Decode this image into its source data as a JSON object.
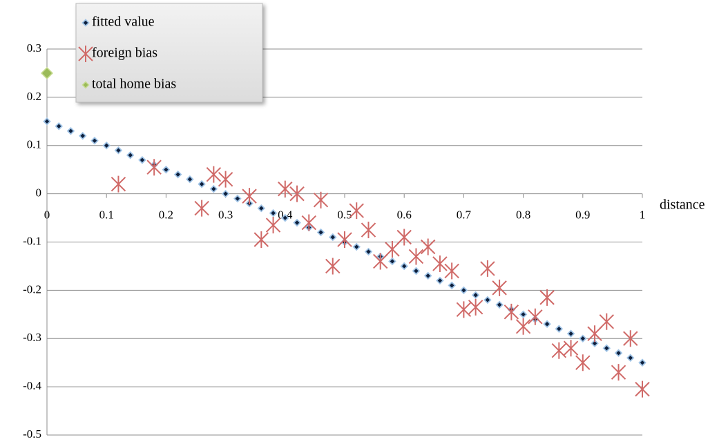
{
  "chart_data": {
    "type": "scatter",
    "x_label": "distance",
    "xlim": [
      0,
      1
    ],
    "xticks": [
      0,
      0.1,
      0.2,
      0.3,
      0.4,
      0.5,
      0.6,
      0.7,
      0.8,
      0.9,
      1
    ],
    "ylim": [
      -0.5,
      0.3
    ],
    "yticks": [
      0.3,
      0.2,
      0.1,
      0,
      -0.1,
      -0.2,
      -0.3,
      -0.4,
      -0.5
    ],
    "grid": true,
    "legend": "top-left",
    "series": [
      {
        "name": "fitted value",
        "color": "#0d1f3c",
        "marker": "diamond",
        "x": [
          0,
          0.02,
          0.04,
          0.06,
          0.08,
          0.1,
          0.12,
          0.14,
          0.16,
          0.18,
          0.2,
          0.22,
          0.24,
          0.26,
          0.28,
          0.3,
          0.32,
          0.34,
          0.36,
          0.38,
          0.4,
          0.42,
          0.44,
          0.46,
          0.48,
          0.5,
          0.52,
          0.54,
          0.56,
          0.58,
          0.6,
          0.62,
          0.64,
          0.66,
          0.68,
          0.7,
          0.72,
          0.74,
          0.76,
          0.78,
          0.8,
          0.82,
          0.84,
          0.86,
          0.88,
          0.9,
          0.92,
          0.94,
          0.96,
          0.98,
          1
        ],
        "values": [
          0.15,
          0.14,
          0.13,
          0.12,
          0.11,
          0.1,
          0.09,
          0.08,
          0.07,
          0.06,
          0.05,
          0.04,
          0.03,
          0.02,
          0.01,
          0,
          -0.01,
          -0.02,
          -0.03,
          -0.04,
          -0.05,
          -0.06,
          -0.07,
          -0.08,
          -0.09,
          -0.1,
          -0.11,
          -0.12,
          -0.13,
          -0.14,
          -0.15,
          -0.16,
          -0.17,
          -0.18,
          -0.19,
          -0.2,
          -0.21,
          -0.22,
          -0.23,
          -0.24,
          -0.25,
          -0.26,
          -0.27,
          -0.28,
          -0.29,
          -0.3,
          -0.31,
          -0.32,
          -0.33,
          -0.34,
          -0.35
        ]
      },
      {
        "name": "foreign bias",
        "color": "#d06a68",
        "marker": "asterisk",
        "x": [
          0.12,
          0.18,
          0.26,
          0.28,
          0.3,
          0.34,
          0.36,
          0.38,
          0.4,
          0.42,
          0.44,
          0.46,
          0.48,
          0.5,
          0.52,
          0.54,
          0.56,
          0.58,
          0.6,
          0.62,
          0.64,
          0.66,
          0.68,
          0.7,
          0.72,
          0.74,
          0.76,
          0.78,
          0.8,
          0.82,
          0.84,
          0.86,
          0.88,
          0.9,
          0.92,
          0.94,
          0.96,
          0.98,
          1
        ],
        "values": [
          0.02,
          0.055,
          -0.03,
          0.04,
          0.03,
          -0.005,
          -0.095,
          -0.065,
          0.01,
          0,
          -0.06,
          -0.013,
          -0.15,
          -0.095,
          -0.035,
          -0.075,
          -0.14,
          -0.115,
          -0.09,
          -0.13,
          -0.11,
          -0.145,
          -0.16,
          -0.24,
          -0.235,
          -0.155,
          -0.195,
          -0.245,
          -0.275,
          -0.255,
          -0.215,
          -0.325,
          -0.32,
          -0.35,
          -0.29,
          -0.265,
          -0.37,
          -0.3,
          -0.405
        ]
      },
      {
        "name": "total home bias",
        "color": "#9bbb59",
        "marker": "diamond",
        "x": [
          0
        ],
        "values": [
          0.25
        ]
      }
    ]
  }
}
